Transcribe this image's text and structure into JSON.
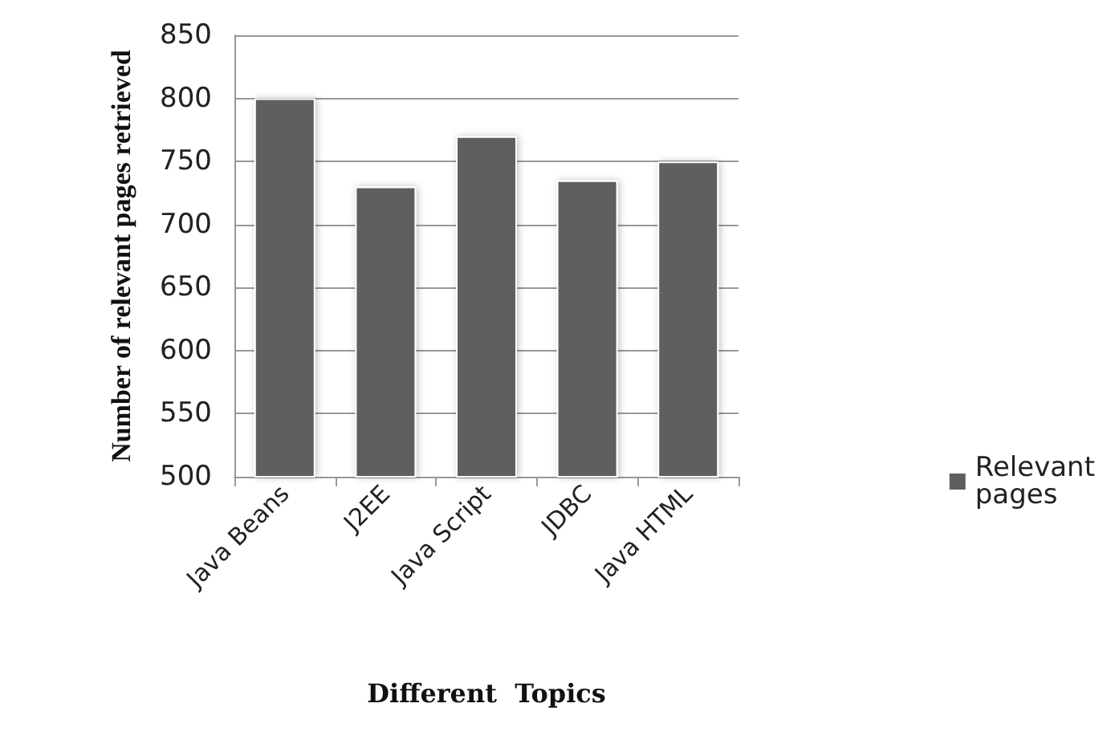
{
  "chart_data": {
    "type": "bar",
    "xlabel": "Different  Topics",
    "ylabel": "Number of relevant pages retrieved",
    "categories": [
      "Java Beans",
      "J2EE",
      "Java Script",
      "JDBC",
      "Java HTML"
    ],
    "series": [
      {
        "name": "Relevant pages",
        "color": "#5f5f5f",
        "values": [
          800,
          730,
          770,
          735,
          750
        ]
      }
    ],
    "ylim": [
      500,
      850
    ],
    "yticks": [
      500,
      550,
      600,
      650,
      700,
      750,
      800,
      850
    ],
    "grid": "y",
    "legend": "right"
  }
}
